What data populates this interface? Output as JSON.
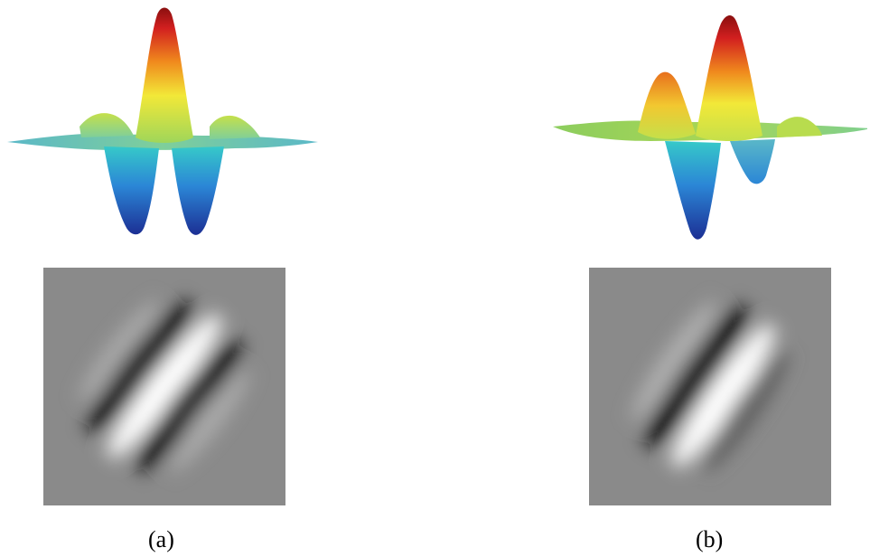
{
  "figure": {
    "panels": [
      {
        "caption": "(a)",
        "kind": "even-symmetric-gabor"
      },
      {
        "caption": "(b)",
        "kind": "odd-symmetric-gabor"
      }
    ],
    "colors": {
      "background": "#ffffff",
      "patch_gray": "#8a8a8a",
      "colormap": [
        "#1c2f94",
        "#2b86d6",
        "#36c9c9",
        "#9fd65a",
        "#f2e838",
        "#f08a1d",
        "#d21f1f",
        "#8a0f0f"
      ]
    }
  }
}
